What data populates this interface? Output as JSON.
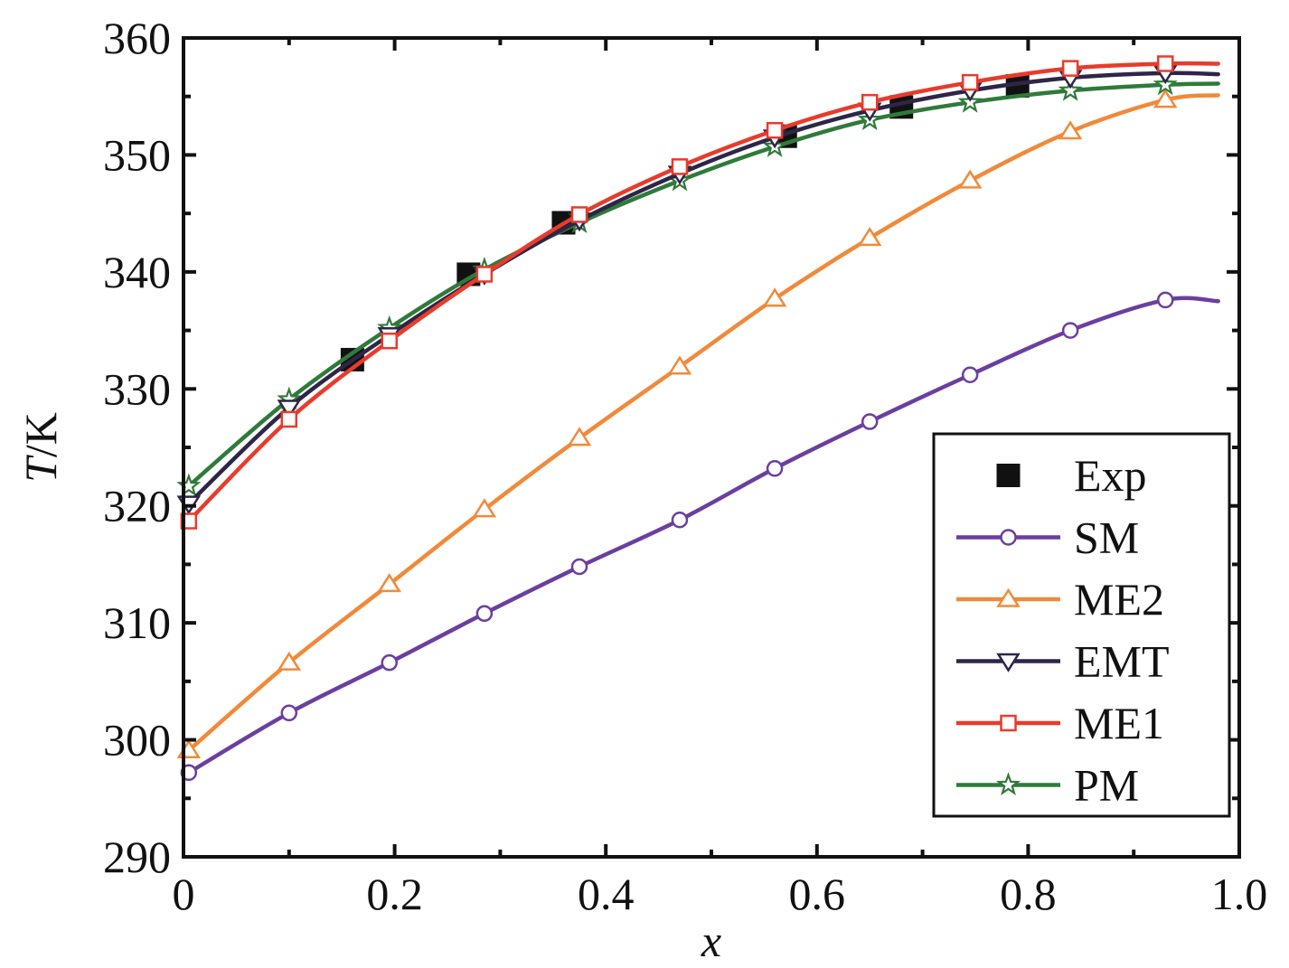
{
  "chart_data": {
    "type": "line",
    "xlabel": "x",
    "ylabel": {
      "italic": "T",
      "unit": "/K"
    },
    "xlim": [
      0,
      1.0
    ],
    "ylim": [
      290,
      360
    ],
    "xticks": [
      0,
      0.2,
      0.4,
      0.6,
      0.8,
      1.0
    ],
    "xtick_labels": [
      "0",
      "0.2",
      "0.4",
      "0.6",
      "0.8",
      "1.0"
    ],
    "yticks": [
      290,
      300,
      310,
      320,
      330,
      340,
      350,
      360
    ],
    "ytick_labels": [
      "290",
      "300",
      "310",
      "320",
      "330",
      "340",
      "350",
      "360"
    ],
    "grid": false,
    "legend_position": "bottom-right",
    "series": [
      {
        "name": "Exp",
        "marker": "square-filled",
        "color": "#111111",
        "line": false,
        "x": [
          0.16,
          0.27,
          0.36,
          0.57,
          0.68,
          0.79
        ],
        "y": [
          332.5,
          339.8,
          344.2,
          351.6,
          354.1,
          355.9
        ]
      },
      {
        "name": "SM",
        "marker": "circle-open",
        "color": "#6a3fa0",
        "line": true,
        "x": [
          0.005,
          0.1,
          0.195,
          0.285,
          0.375,
          0.47,
          0.56,
          0.65,
          0.745,
          0.84,
          0.93,
          0.98
        ],
        "y": [
          297.2,
          302.3,
          306.6,
          310.8,
          314.8,
          318.8,
          323.2,
          327.2,
          331.2,
          335.0,
          337.6,
          337.5
        ]
      },
      {
        "name": "ME2",
        "marker": "triangle-up-open",
        "color": "#f08a3a",
        "line": true,
        "x": [
          0.005,
          0.1,
          0.195,
          0.285,
          0.375,
          0.47,
          0.56,
          0.65,
          0.745,
          0.84,
          0.93,
          0.98
        ],
        "y": [
          299.1,
          306.6,
          313.3,
          319.7,
          325.8,
          331.9,
          337.7,
          342.9,
          347.8,
          352.0,
          354.7,
          355.1
        ]
      },
      {
        "name": "EMT",
        "marker": "triangle-down-open",
        "color": "#2e2547",
        "line": true,
        "x": [
          0.005,
          0.1,
          0.195,
          0.285,
          0.375,
          0.47,
          0.56,
          0.65,
          0.745,
          0.84,
          0.93,
          0.98
        ],
        "y": [
          320.2,
          328.4,
          334.6,
          339.8,
          344.4,
          348.4,
          351.5,
          353.8,
          355.5,
          356.6,
          357.0,
          356.9
        ]
      },
      {
        "name": "ME1",
        "marker": "square-open",
        "color": "#e83b2b",
        "line": true,
        "x": [
          0.005,
          0.1,
          0.195,
          0.285,
          0.375,
          0.47,
          0.56,
          0.65,
          0.745,
          0.84,
          0.93,
          0.98
        ],
        "y": [
          318.7,
          327.4,
          334.1,
          339.8,
          344.9,
          349.0,
          352.1,
          354.5,
          356.2,
          357.4,
          357.8,
          357.8
        ]
      },
      {
        "name": "PM",
        "marker": "star-open",
        "color": "#2f7a3a",
        "line": true,
        "x": [
          0.005,
          0.1,
          0.195,
          0.285,
          0.375,
          0.47,
          0.56,
          0.65,
          0.745,
          0.84,
          0.93,
          0.98
        ],
        "y": [
          321.7,
          329.1,
          335.2,
          340.2,
          344.2,
          347.8,
          350.7,
          353.0,
          354.5,
          355.5,
          356.0,
          356.1
        ]
      }
    ]
  }
}
